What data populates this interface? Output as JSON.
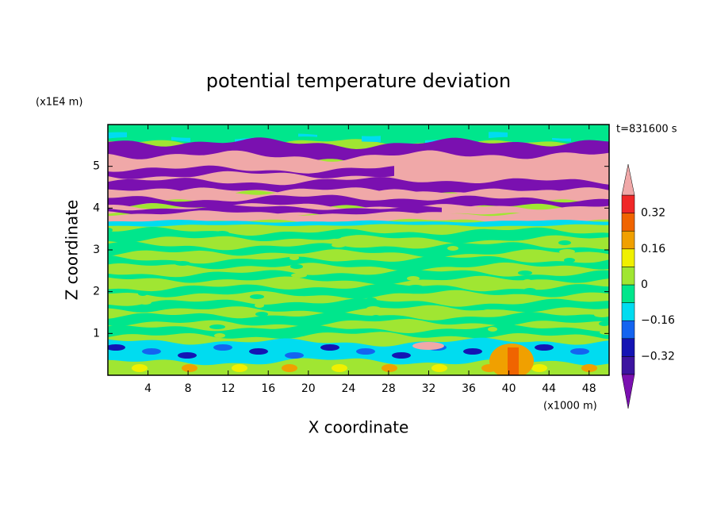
{
  "chart_data": {
    "type": "contour",
    "title": "potential temperature deviation",
    "x_label": "X coordinate",
    "x_unit": "(x1000 m)",
    "y_label": "Z coordinate",
    "y_unit": "(x1E4 m)",
    "time_label": "t=831600 s",
    "xlim": [
      0,
      50
    ],
    "xticks": [
      4,
      8,
      12,
      16,
      20,
      24,
      28,
      32,
      36,
      40,
      44,
      48
    ],
    "ylim": [
      0,
      6
    ],
    "yticks": [
      1,
      2,
      3,
      4,
      5
    ],
    "colorbar": {
      "bounds": [
        -0.4,
        -0.32,
        -0.24,
        -0.16,
        -0.08,
        0,
        0.08,
        0.16,
        0.24,
        0.32,
        0.4
      ],
      "colors": [
        "#7a10b0",
        "#3c14a0",
        "#1414b4",
        "#1464f0",
        "#00dcf0",
        "#00e68c",
        "#a0e632",
        "#f0f000",
        "#f0a000",
        "#f06400",
        "#f02828",
        "#f0a8a8"
      ],
      "ticks": [
        {
          "value": -0.32,
          "label": "−0.32"
        },
        {
          "value": -0.16,
          "label": "−0.16"
        },
        0,
        0.16,
        0.32
      ]
    }
  }
}
